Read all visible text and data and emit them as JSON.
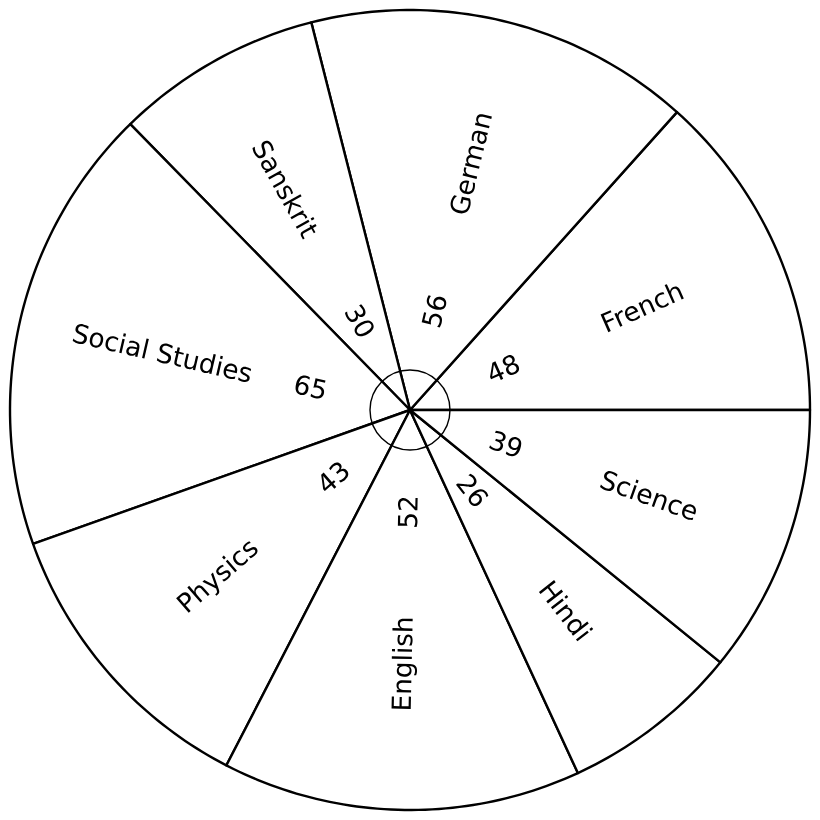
{
  "chart_data": {
    "type": "pie",
    "categories": [
      "French",
      "German",
      "Sanskrit",
      "Social Studies",
      "Physics",
      "English",
      "Hindi",
      "Science"
    ],
    "values": [
      48,
      56,
      30,
      65,
      43,
      52,
      26,
      39
    ],
    "colors": [
      "#ffffff",
      "#ffffff",
      "#ffffff",
      "#ffffff",
      "#ffffff",
      "#ffffff",
      "#ffffff",
      "#ffffff"
    ],
    "data_labels": true
  }
}
